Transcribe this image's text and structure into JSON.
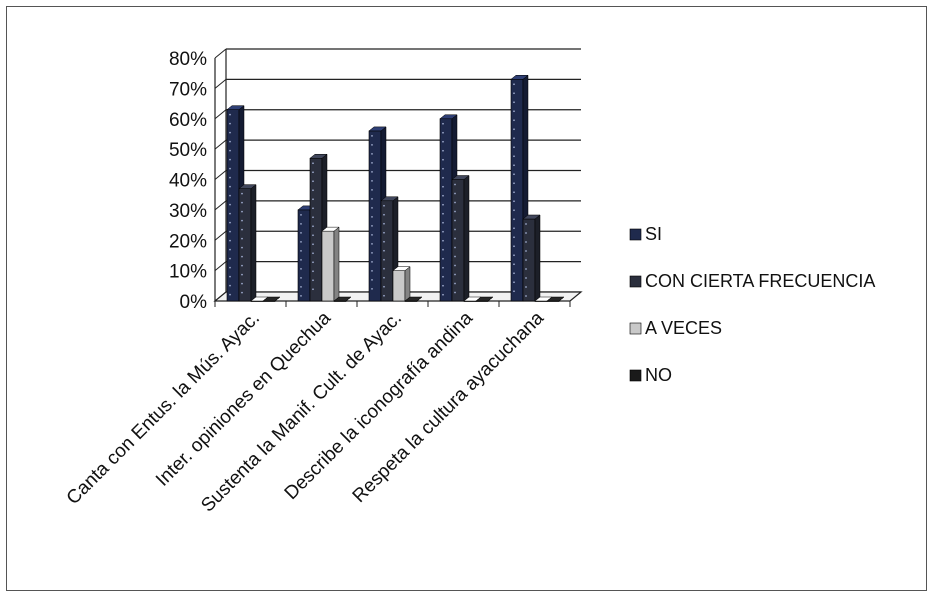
{
  "chart_data": {
    "type": "bar",
    "style": "3d-clustered-column",
    "categories": [
      "Canta con Entus. la Mús. Ayac.",
      "Inter. opiniones en Quechua",
      "Sustenta la Manif. Cult. de Ayac.",
      "Describe la iconografía andina",
      "Respeta la cultura ayacuchana"
    ],
    "series": [
      {
        "name": "SI",
        "values": [
          0.63,
          0.3,
          0.56,
          0.6,
          0.73
        ],
        "color": "#1f2a4d"
      },
      {
        "name": "CON CIERTA FRECUENCIA",
        "values": [
          0.37,
          0.47,
          0.33,
          0.4,
          0.27
        ],
        "color": "#2b2f3d"
      },
      {
        "name": "A VECES",
        "values": [
          0.0,
          0.23,
          0.1,
          0.0,
          0.0
        ],
        "color": "#c9c9c9"
      },
      {
        "name": "NO",
        "values": [
          0.0,
          0.0,
          0.0,
          0.0,
          0.0
        ],
        "color": "#1a1a1a"
      }
    ],
    "ylim": [
      0,
      0.8
    ],
    "yticks": [
      "0%",
      "10%",
      "20%",
      "30%",
      "40%",
      "50%",
      "60%",
      "70%",
      "80%"
    ],
    "grid": true,
    "legend_position": "right",
    "title": "",
    "xlabel": "",
    "ylabel": ""
  }
}
